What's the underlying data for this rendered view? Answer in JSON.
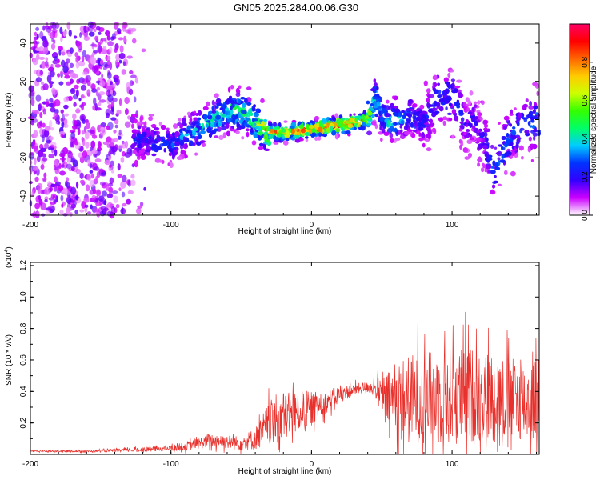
{
  "chart_data": [
    {
      "type": "heatmap",
      "title": "GN05.2025.284.00.06.G30",
      "xlabel": "Height of straight line (km)",
      "ylabel": "Frequency (Hz)",
      "xlim": [
        -200,
        162
      ],
      "ylim": [
        -50,
        50
      ],
      "xticks": [
        "-200",
        "-100",
        "0",
        "100"
      ],
      "yticks": [
        "-40",
        "-20",
        "0",
        "20",
        "40"
      ],
      "colorbar": {
        "label": "Normalized spectral amplitude",
        "range": [
          0.0,
          1.0
        ],
        "ticks": [
          "0.0",
          "0.2",
          "0.4",
          "0.6",
          "0.8"
        ],
        "colormap": [
          "#ffffff",
          "#cc00ff",
          "#3300ff",
          "#0033ff",
          "#00ccff",
          "#00ff66",
          "#33ff00",
          "#ccff00",
          "#ffcc00",
          "#ff6600",
          "#ff0000",
          "#ff0066"
        ]
      },
      "ridge": {
        "x": [
          -125,
          -110,
          -100,
          -90,
          -80,
          -70,
          -60,
          -55,
          -50,
          -45,
          -40,
          -35,
          -30,
          -20,
          -10,
          0,
          10,
          20,
          30,
          38,
          42,
          45,
          50,
          55,
          60,
          70,
          80,
          90,
          100,
          105,
          110,
          115,
          120,
          125,
          130,
          140,
          150,
          160
        ],
        "y": [
          -10,
          -12,
          -14,
          -8,
          -5,
          0,
          3,
          5,
          4,
          2,
          -2,
          -4,
          -6,
          -7,
          -6,
          -5,
          -4,
          -3,
          -2,
          0,
          3,
          12,
          3,
          -2,
          0,
          2,
          -2,
          12,
          12,
          5,
          -5,
          2,
          -8,
          -15,
          -28,
          -10,
          -2,
          0
        ],
        "peak_amplitude": [
          0.25,
          0.3,
          0.3,
          0.35,
          0.4,
          0.45,
          0.5,
          0.55,
          0.55,
          0.5,
          0.6,
          0.75,
          0.85,
          0.9,
          0.9,
          0.95,
          0.95,
          0.95,
          0.95,
          0.9,
          0.6,
          0.5,
          0.35,
          0.45,
          0.45,
          0.35,
          0.25,
          0.3,
          0.3,
          0.25,
          0.2,
          0.2,
          0.2,
          0.25,
          0.3,
          0.3,
          0.3,
          0.35
        ]
      },
      "noise_region_x": [
        -200,
        -125
      ]
    },
    {
      "type": "line",
      "title": "",
      "xlabel": "Height of straight line (km)",
      "ylabel": "SNR (10 * v/v)",
      "multiplier_label": "(x10",
      "multiplier_exponent": "4",
      "multiplier_close": ")",
      "xlim": [
        -200,
        162
      ],
      "ylim": [
        0,
        1.22
      ],
      "xticks": [
        "-200",
        "-100",
        "0",
        "100"
      ],
      "yticks": [
        "0.2",
        "0.4",
        "0.6",
        "0.8",
        "1.0",
        "1.2"
      ],
      "color": "#e8312c",
      "series": [
        {
          "x": [
            -200,
            -180,
            -160,
            -140,
            -120,
            -100,
            -90,
            -80,
            -70,
            -60,
            -50,
            -40,
            -35,
            -30,
            -25,
            -20,
            -10,
            0,
            10,
            20,
            30,
            40,
            45,
            50,
            55,
            60,
            70,
            80,
            90,
            100,
            110,
            120,
            130,
            140,
            150,
            162
          ],
          "y": [
            0.02,
            0.02,
            0.02,
            0.025,
            0.03,
            0.04,
            0.05,
            0.07,
            0.09,
            0.08,
            0.07,
            0.1,
            0.15,
            0.2,
            0.22,
            0.24,
            0.27,
            0.29,
            0.33,
            0.38,
            0.41,
            0.43,
            0.42,
            0.38,
            0.35,
            0.34,
            0.35,
            0.36,
            0.36,
            0.37,
            0.37,
            0.37,
            0.36,
            0.35,
            0.34,
            0.35
          ],
          "spread": [
            0.005,
            0.005,
            0.008,
            0.01,
            0.015,
            0.02,
            0.03,
            0.04,
            0.05,
            0.05,
            0.05,
            0.08,
            0.12,
            0.15,
            0.18,
            0.18,
            0.15,
            0.12,
            0.08,
            0.06,
            0.04,
            0.04,
            0.06,
            0.12,
            0.2,
            0.28,
            0.32,
            0.32,
            0.34,
            0.35,
            0.35,
            0.34,
            0.32,
            0.3,
            0.28,
            0.3
          ]
        }
      ]
    }
  ]
}
